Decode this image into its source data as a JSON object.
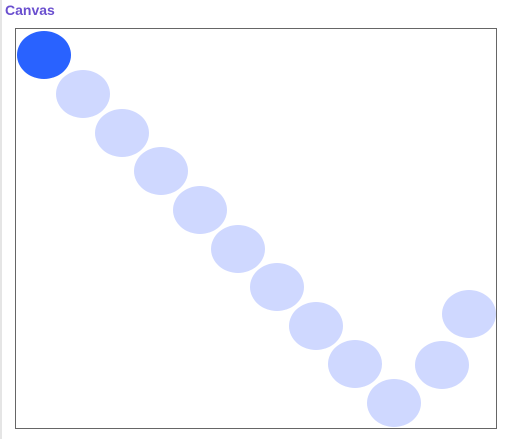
{
  "header": {
    "title": "Canvas",
    "title_color": "#6a4fcf"
  },
  "canvas": {
    "active_color": "#2962ff",
    "trail_color": "#cfd8ff",
    "dot_count": 12,
    "active_index": 0
  }
}
